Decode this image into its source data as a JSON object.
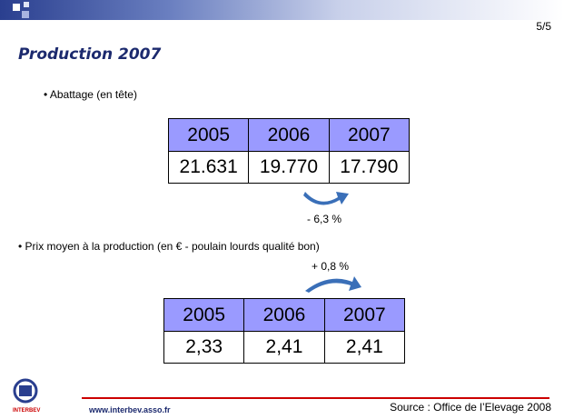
{
  "header": {
    "page": "5/5"
  },
  "title": "Production 2007",
  "section1": {
    "bullet": "• Abattage (en tête)",
    "table": {
      "header": [
        "2005",
        "2006",
        "2007"
      ],
      "rows": [
        [
          "21.631",
          "19.770",
          "17.790"
        ]
      ]
    },
    "change": "- 6,3 %"
  },
  "section2": {
    "bullet": "• Prix moyen à la production (en € - poulain lourds qualité bon)",
    "table": {
      "header": [
        "2005",
        "2006",
        "2007"
      ],
      "rows": [
        [
          "2,33",
          "2,41",
          "2,41"
        ]
      ]
    },
    "change": "+ 0,8 %"
  },
  "footer": {
    "logo": "INTERBEV",
    "url": "www.interbev.asso.fr",
    "source": "Source : Office de l’Elevage 2008"
  }
}
